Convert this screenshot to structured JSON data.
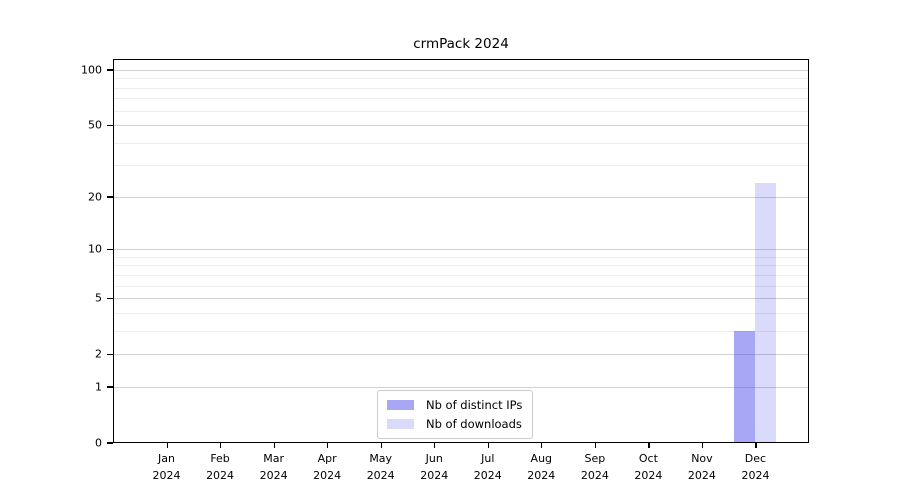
{
  "title": "crmPack 2024",
  "legend": {
    "position": "bottom-center",
    "items": [
      {
        "label": "Nb of distinct IPs",
        "color": "rgba(60,60,235,0.45)"
      },
      {
        "label": "Nb of downloads",
        "color": "rgba(60,60,235,0.19)"
      }
    ]
  },
  "chart_data": {
    "type": "bar",
    "title": "crmPack 2024",
    "categories": [
      "Jan 2024",
      "Feb 2024",
      "Mar 2024",
      "Apr 2024",
      "May 2024",
      "Jun 2024",
      "Jul 2024",
      "Aug 2024",
      "Sep 2024",
      "Oct 2024",
      "Nov 2024",
      "Dec 2024"
    ],
    "series": [
      {
        "name": "Nb of distinct IPs",
        "color": "rgba(60,60,235,0.45)",
        "color_hex_on_white": "#a7a7f6",
        "values": [
          0,
          0,
          0,
          0,
          0,
          0,
          0,
          0,
          0,
          0,
          0,
          3
        ]
      },
      {
        "name": "Nb of downloads",
        "color": "rgba(60,60,235,0.19)",
        "color_hex_on_white": "#dadafb",
        "values": [
          0,
          0,
          0,
          0,
          0,
          0,
          0,
          0,
          0,
          0,
          0,
          24
        ]
      }
    ],
    "xlabel": "",
    "ylabel": "",
    "yscale": "log1p",
    "ylim": [
      0,
      115
    ],
    "y_major_ticks": [
      0,
      1,
      2,
      5,
      10,
      20,
      50,
      100
    ],
    "y_tick_labels": [
      "0",
      "1",
      "2",
      "5",
      "10",
      "20",
      "50",
      "100"
    ],
    "y_minor_gridlines": [
      3,
      4,
      6,
      7,
      8,
      9,
      30,
      40,
      60,
      70,
      80,
      90
    ],
    "grid": "horizontal",
    "legend_position": "bottom-center",
    "colors": {
      "grid_major": "#d2d2d2",
      "grid_minor": "#ededed",
      "spine": "#000000",
      "background": "#ffffff"
    }
  }
}
